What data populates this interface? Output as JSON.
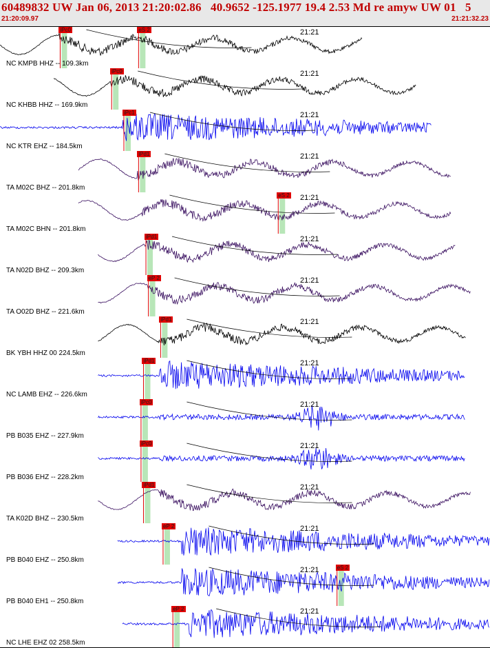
{
  "header": {
    "title": "60489832 UW Jan 06, 2013 21:20:02.86   40.9652 -125.1977 19.4 2.53 Md re amyw UW 01   5",
    "time_start": "21:20:09.97",
    "time_end": "21:21:32.23"
  },
  "colors": {
    "header_text": "#c00000",
    "pick_flag": "#e00000",
    "pick_window": "#b8e6b8",
    "trace_broadband": "#3a1060",
    "trace_short_period": "#0000ee",
    "trace_black": "#000000",
    "travel_time_curve": "#000000"
  },
  "traces": [
    {
      "station": "NC KMPB HHZ -- 109.3km",
      "time": "21:21",
      "color": "black",
      "type": "mixed",
      "picks": [
        {
          "label": "iPc0",
          "frac": 0.12
        },
        {
          "label": "eS 2",
          "frac": 0.28
        }
      ],
      "start": 0.0,
      "end": 0.74,
      "onset": 0.12
    },
    {
      "station": "NC KHBB HHZ -- 169.9km",
      "time": "21:21",
      "color": "black",
      "type": "mixed",
      "picks": [
        {
          "label": "iPc0",
          "frac": 0.225
        }
      ],
      "start": 0.11,
      "end": 0.85,
      "onset": 0.225
    },
    {
      "station": "NC KTR EHZ -- 184.5km",
      "time": "21:21",
      "color": "blue",
      "type": "sp",
      "picks": [
        {
          "label": "iPc1",
          "frac": 0.25
        }
      ],
      "start": 0.0,
      "end": 0.88,
      "onset": 0.25
    },
    {
      "station": "TA M02C BHZ -- 201.8km",
      "time": "21:21",
      "color": "purple",
      "type": "bb",
      "picks": [
        {
          "label": "iPd1",
          "frac": 0.28
        }
      ],
      "start": 0.16,
      "end": 0.92,
      "onset": 0.28
    },
    {
      "station": "TA M02C BHN -- 201.8km",
      "time": "21:21",
      "color": "purple",
      "type": "bb",
      "picks": [
        {
          "label": "eS 2",
          "frac": 0.565
        }
      ],
      "start": 0.16,
      "end": 0.92,
      "onset": 0.29
    },
    {
      "station": "TA N02D BHZ -- 209.3km",
      "time": "21:21",
      "color": "purple",
      "type": "bb",
      "picks": [
        {
          "label": "iPd1",
          "frac": 0.295
        }
      ],
      "start": 0.2,
      "end": 0.93,
      "onset": 0.295
    },
    {
      "station": "TA O02D BHZ -- 221.6km",
      "time": "21:21",
      "color": "purple",
      "type": "bb",
      "picks": [
        {
          "label": "eP 2",
          "frac": 0.3
        }
      ],
      "start": 0.2,
      "end": 0.96,
      "onset": 0.3
    },
    {
      "station": "BK YBH HHZ 00 224.5km",
      "time": "21:21",
      "color": "black",
      "type": "bb",
      "picks": [
        {
          "label": "iPd1",
          "frac": 0.325
        }
      ],
      "start": 0.2,
      "end": 0.95,
      "onset": 0.325
    },
    {
      "station": "NC LAMB EHZ -- 226.6km",
      "time": "21:21",
      "color": "blue",
      "type": "sp",
      "picks": [
        {
          "label": "iPd1",
          "frac": 0.29
        }
      ],
      "start": 0.2,
      "end": 0.95,
      "onset": 0.325
    },
    {
      "station": "PB B035 EHZ -- 227.9km",
      "time": "21:21",
      "color": "blue",
      "type": "sp2",
      "picks": [
        {
          "label": "iPc0",
          "frac": 0.285
        }
      ],
      "start": 0.2,
      "end": 0.95,
      "onset": 0.325
    },
    {
      "station": "PB B036 EHZ -- 228.2km",
      "time": "21:21",
      "color": "blue",
      "type": "sp2",
      "picks": [
        {
          "label": "iPc0",
          "frac": 0.285
        }
      ],
      "start": 0.2,
      "end": 0.95,
      "onset": 0.325
    },
    {
      "station": "TA K02D BHZ -- 230.5km",
      "time": "21:21",
      "color": "purple",
      "type": "bb",
      "picks": [
        {
          "label": "iPd1",
          "frac": 0.29
        }
      ],
      "start": 0.2,
      "end": 0.96,
      "onset": 0.325
    },
    {
      "station": "PB B040 EHZ -- 250.8km",
      "time": "21:21",
      "color": "blue",
      "type": "sp",
      "picks": [
        {
          "label": "eP 2",
          "frac": 0.33
        }
      ],
      "start": 0.24,
      "end": 1.0,
      "onset": 0.37
    },
    {
      "station": "PB B040 EH1 -- 250.8km",
      "time": "21:21",
      "color": "blue",
      "type": "sp",
      "picks": [
        {
          "label": "eS 2",
          "frac": 0.685
        }
      ],
      "start": 0.24,
      "end": 1.0,
      "onset": 0.37
    },
    {
      "station": "NC LHE EHZ 02 258.5km",
      "time": "21:21",
      "color": "blue",
      "type": "sp",
      "picks": [
        {
          "label": "eP 2",
          "frac": 0.35
        }
      ],
      "start": 0.25,
      "end": 1.0,
      "onset": 0.385
    }
  ]
}
